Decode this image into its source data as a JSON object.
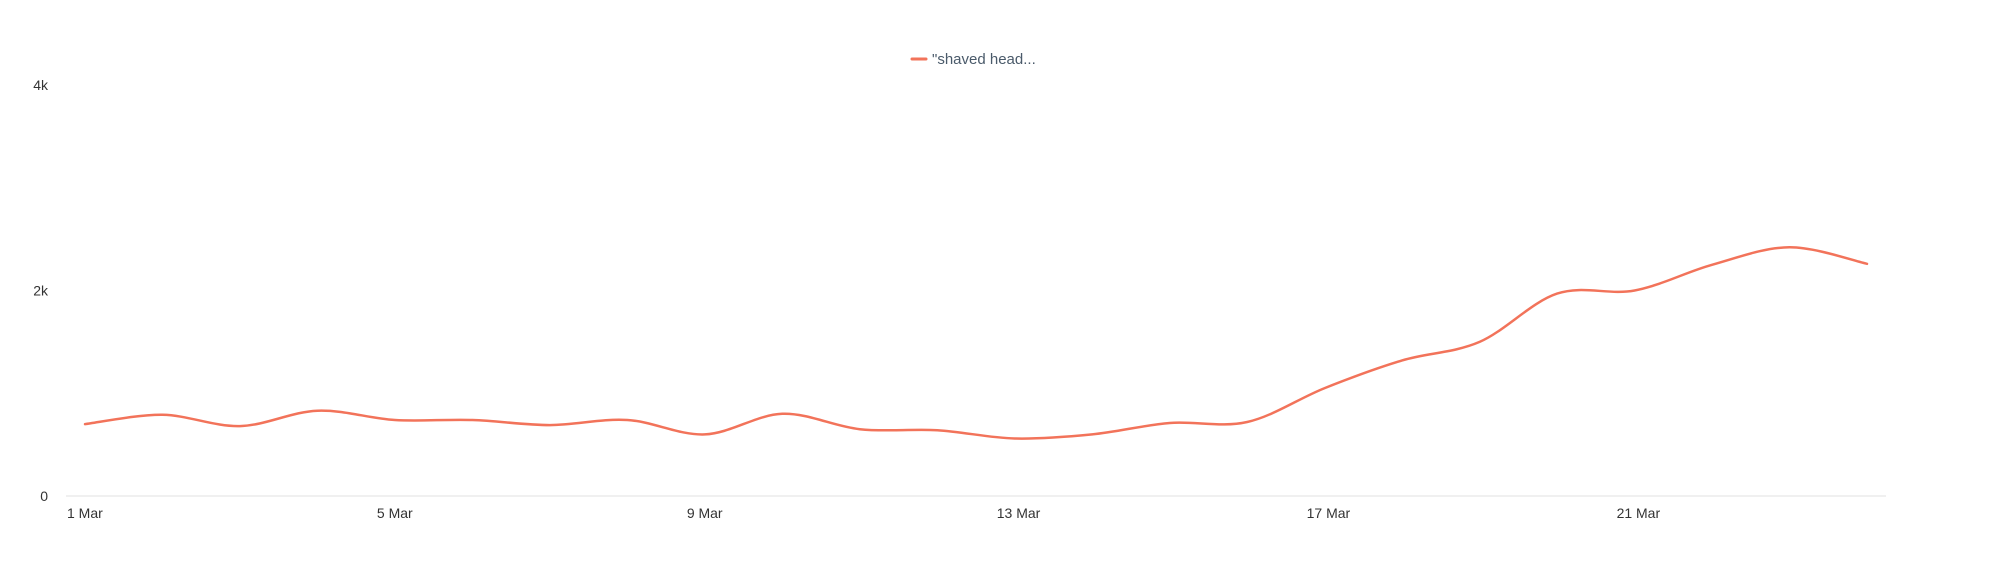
{
  "chart_data": {
    "type": "line",
    "title": "",
    "xlabel": "",
    "ylabel": "",
    "x": [
      "1 Mar",
      "2 Mar",
      "3 Mar",
      "4 Mar",
      "5 Mar",
      "6 Mar",
      "7 Mar",
      "8 Mar",
      "9 Mar",
      "10 Mar",
      "11 Mar",
      "12 Mar",
      "13 Mar",
      "14 Mar",
      "15 Mar",
      "16 Mar",
      "17 Mar",
      "18 Mar",
      "19 Mar",
      "20 Mar",
      "21 Mar",
      "22 Mar",
      "23 Mar",
      "24 Mar"
    ],
    "x_tick_labels": [
      "1 Mar",
      "5 Mar",
      "9 Mar",
      "13 Mar",
      "17 Mar",
      "21 Mar"
    ],
    "y_tick_labels": [
      "0",
      "2k",
      "4k"
    ],
    "ylim": [
      0,
      4000
    ],
    "grid": false,
    "legend_position": "top-center",
    "series": [
      {
        "name": "\"shaved head...",
        "color": "#f2735a",
        "values": [
          700,
          790,
          680,
          830,
          740,
          740,
          690,
          740,
          600,
          800,
          650,
          640,
          560,
          600,
          710,
          720,
          1050,
          1320,
          1500,
          1970,
          2000,
          2250,
          2420,
          2260
        ]
      }
    ]
  }
}
